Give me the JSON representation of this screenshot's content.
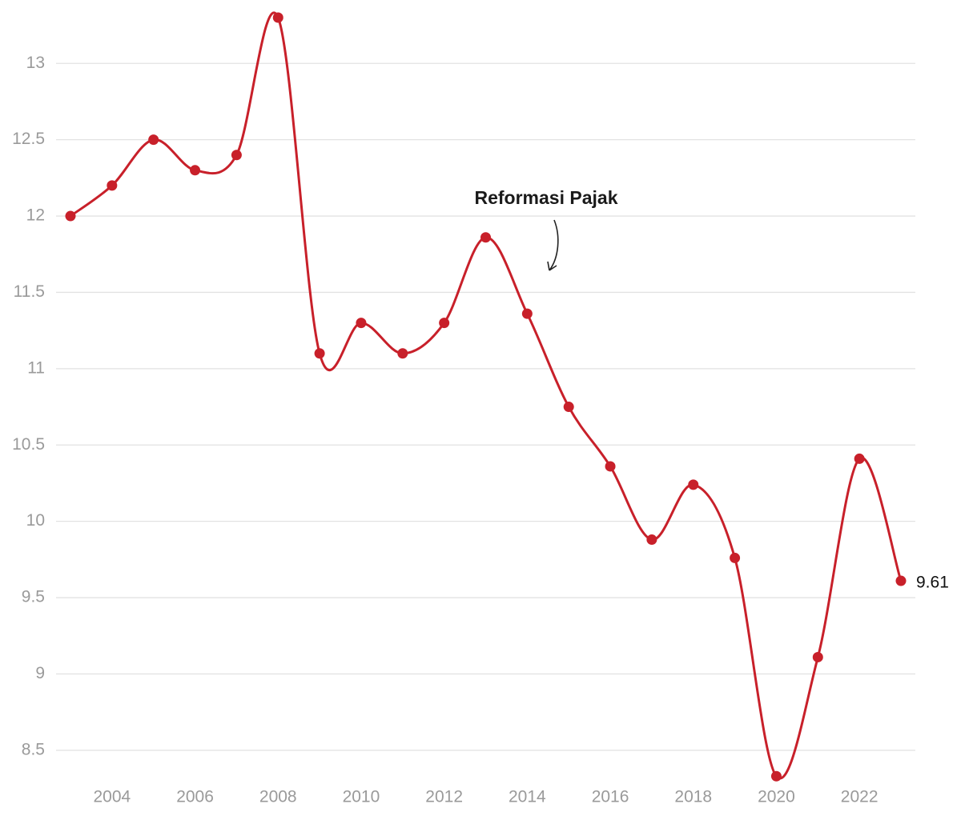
{
  "chart_data": {
    "type": "line",
    "annotation": "Reformasi Pajak",
    "x": [
      2003,
      2004,
      2005,
      2006,
      2007,
      2008,
      2009,
      2010,
      2011,
      2012,
      2013,
      2014,
      2015,
      2016,
      2017,
      2018,
      2019,
      2020,
      2021,
      2022,
      2023
    ],
    "values": [
      12.0,
      12.2,
      12.5,
      12.3,
      12.4,
      13.3,
      11.1,
      11.3,
      11.1,
      11.3,
      11.86,
      11.36,
      10.75,
      10.36,
      9.88,
      10.24,
      9.76,
      8.33,
      9.11,
      10.41,
      9.61
    ],
    "color": "#c8202a",
    "xlim": [
      2003,
      2023
    ],
    "xticks": [
      2004,
      2006,
      2008,
      2010,
      2012,
      2014,
      2016,
      2018,
      2020,
      2022
    ],
    "ylim": [
      8.3,
      13.3
    ],
    "yticks": [
      8.5,
      9,
      9.5,
      10,
      10.5,
      11,
      11.5,
      12,
      12.5,
      13
    ],
    "grid": true
  }
}
